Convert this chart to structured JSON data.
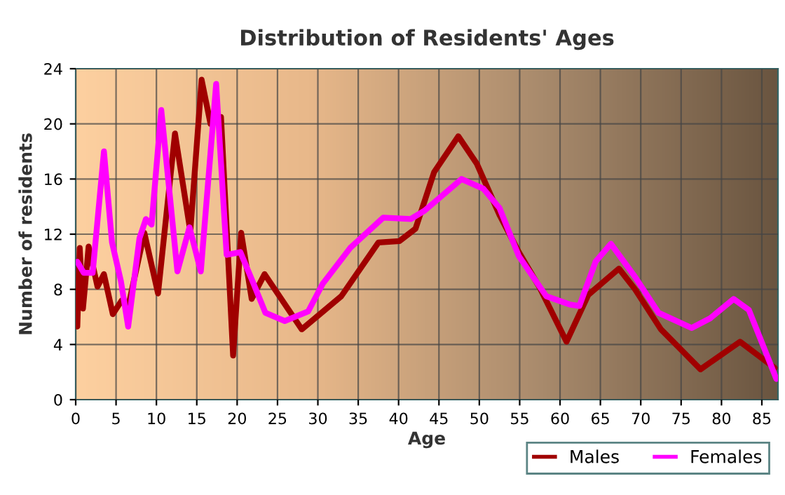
{
  "chart_data": {
    "type": "line",
    "title": "Distribution of Residents' Ages",
    "xlabel": "Age",
    "ylabel": "Number of residents",
    "xlim": [
      0,
      87
    ],
    "xticks": [
      0,
      5,
      10,
      15,
      20,
      25,
      30,
      35,
      40,
      45,
      50,
      55,
      60,
      65,
      70,
      75,
      80,
      85
    ],
    "ylim": [
      0,
      24
    ],
    "yticks": [
      0,
      4,
      8,
      12,
      16,
      20,
      24
    ],
    "grid": true,
    "legend": "bottom right",
    "line_style": "solid",
    "marker": "none",
    "series": [
      {
        "name": "Males",
        "color": "#a00000",
        "x": [
          0.2,
          0.5,
          0.9,
          1.6,
          2.7,
          3.5,
          4.6,
          5.7,
          6.6,
          8.5,
          10.2,
          12.3,
          14.2,
          15.6,
          16.7,
          18.0,
          19.5,
          20.5,
          21.8,
          23.4,
          28.0,
          32.9,
          37.5,
          40.1,
          42.1,
          44.4,
          47.4,
          49.7,
          52.5,
          54.9,
          57.5,
          60.8,
          63.5,
          67.3,
          69.3,
          72.5,
          77.4,
          82.3,
          86.6
        ],
        "values": [
          5.3,
          11.0,
          6.6,
          11.1,
          8.2,
          9.1,
          6.2,
          7.2,
          7.0,
          12.1,
          7.7,
          19.3,
          12.2,
          23.2,
          20.0,
          20.5,
          3.2,
          12.1,
          7.3,
          9.1,
          5.1,
          7.5,
          11.4,
          11.5,
          12.4,
          16.5,
          19.1,
          17.1,
          13.4,
          10.7,
          8.1,
          4.2,
          7.6,
          9.5,
          8.0,
          5.1,
          2.2,
          4.2,
          2.3
        ]
      },
      {
        "name": "Females",
        "color": "#ff00ff",
        "x": [
          0.2,
          1.0,
          2.1,
          3.5,
          4.5,
          5.6,
          6.5,
          7.9,
          8.7,
          9.4,
          10.6,
          12.6,
          14.1,
          15.5,
          17.4,
          18.7,
          20.4,
          21.9,
          23.5,
          25.9,
          28.8,
          30.6,
          34.0,
          38.1,
          41.5,
          43.2,
          47.8,
          50.5,
          52.5,
          54.9,
          58.3,
          61.2,
          62.4,
          64.4,
          66.3,
          69.3,
          72.2,
          76.3,
          78.6,
          81.5,
          83.4,
          86.8
        ],
        "values": [
          10.0,
          9.2,
          9.2,
          18.0,
          11.4,
          8.6,
          5.3,
          11.7,
          13.1,
          12.7,
          21.0,
          9.3,
          12.5,
          9.3,
          22.9,
          10.5,
          10.7,
          8.6,
          6.3,
          5.7,
          6.4,
          8.4,
          11.0,
          13.2,
          13.1,
          13.7,
          16.0,
          15.3,
          13.9,
          10.4,
          7.5,
          6.9,
          6.8,
          10.0,
          11.3,
          8.9,
          6.3,
          5.2,
          5.9,
          7.3,
          6.5,
          1.5
        ]
      }
    ]
  }
}
